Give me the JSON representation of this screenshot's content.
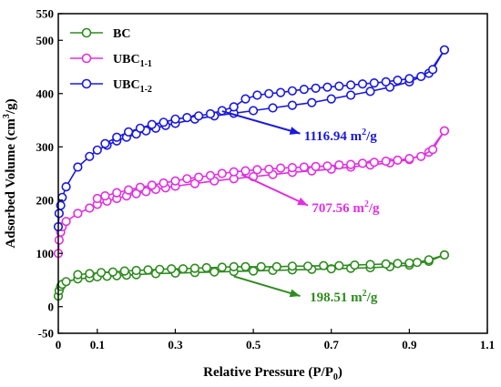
{
  "chart_data": {
    "type": "line",
    "xlabel_main": "Relative Pressure (P/P",
    "xlabel_sub": "0",
    "xlabel_end": ")",
    "ylabel_main": "Adsorbed Volume (cm",
    "ylabel_sup": "3",
    "ylabel_end": "/g)",
    "xlim": [
      0,
      1.1
    ],
    "ylim": [
      -50,
      550
    ],
    "xticks": [
      "0",
      "0.1",
      "0.3",
      "0.5",
      "0.7",
      "0.9",
      "1.1"
    ],
    "xtick_values": [
      0,
      0.1,
      0.3,
      0.5,
      0.7,
      0.9,
      1.1
    ],
    "yticks": [
      "-50",
      "0",
      "100",
      "200",
      "300",
      "400",
      "500",
      "550"
    ],
    "ytick_values": [
      -50,
      0,
      100,
      200,
      300,
      400,
      500,
      550
    ],
    "legend": [
      {
        "main": "BC",
        "sub": "",
        "color": "#2e8b1f"
      },
      {
        "main": "UBC",
        "sub": "1-1",
        "color": "#e030e0"
      },
      {
        "main": "UBC",
        "sub": "1-2",
        "color": "#1a1adc"
      }
    ],
    "series": [
      {
        "color": "#2e8b1f",
        "adsorption": {
          "x": [
            0.0,
            0.002,
            0.006,
            0.01,
            0.02,
            0.05,
            0.08,
            0.1,
            0.125,
            0.15,
            0.175,
            0.2,
            0.25,
            0.3,
            0.35,
            0.4,
            0.45,
            0.5,
            0.55,
            0.6,
            0.65,
            0.7,
            0.75,
            0.8,
            0.85,
            0.9,
            0.95,
            0.99
          ],
          "y": [
            20,
            30,
            38,
            42,
            47,
            52,
            54,
            56,
            57,
            58,
            59,
            60,
            62,
            63,
            64,
            65,
            66,
            67,
            68,
            69,
            70,
            71,
            72,
            73,
            75,
            78,
            85,
            97
          ]
        },
        "desorption": {
          "x": [
            0.99,
            0.95,
            0.92,
            0.9,
            0.87,
            0.84,
            0.8,
            0.76,
            0.72,
            0.68,
            0.64,
            0.6,
            0.56,
            0.52,
            0.48,
            0.45,
            0.42,
            0.38,
            0.35,
            0.32,
            0.29,
            0.26,
            0.23,
            0.2,
            0.17,
            0.14,
            0.11,
            0.08,
            0.05
          ],
          "y": [
            97,
            88,
            83,
            82,
            81,
            80,
            79,
            78,
            77,
            77,
            76,
            76,
            75,
            75,
            75,
            75,
            74,
            73,
            72,
            71,
            71,
            70,
            69,
            68,
            67,
            65,
            64,
            62,
            60
          ]
        }
      },
      {
        "color": "#e030e0",
        "adsorption": {
          "x": [
            0.0,
            0.002,
            0.006,
            0.01,
            0.02,
            0.05,
            0.08,
            0.1,
            0.125,
            0.15,
            0.175,
            0.2,
            0.225,
            0.25,
            0.275,
            0.3,
            0.35,
            0.4,
            0.45,
            0.5,
            0.55,
            0.6,
            0.65,
            0.7,
            0.75,
            0.8,
            0.85,
            0.9,
            0.95,
            0.99
          ],
          "y": [
            100,
            125,
            140,
            150,
            160,
            175,
            185,
            192,
            198,
            203,
            208,
            212,
            216,
            220,
            223,
            226,
            231,
            236,
            240,
            244,
            248,
            252,
            255,
            258,
            262,
            266,
            270,
            276,
            290,
            330
          ]
        },
        "desorption": {
          "x": [
            0.99,
            0.96,
            0.93,
            0.9,
            0.87,
            0.84,
            0.81,
            0.78,
            0.75,
            0.72,
            0.69,
            0.66,
            0.63,
            0.6,
            0.57,
            0.54,
            0.51,
            0.48,
            0.45,
            0.42,
            0.39,
            0.36,
            0.33,
            0.3,
            0.27,
            0.24,
            0.21,
            0.18,
            0.15,
            0.12,
            0.1
          ],
          "y": [
            330,
            295,
            282,
            278,
            275,
            273,
            271,
            269,
            267,
            266,
            264,
            263,
            262,
            261,
            260,
            258,
            257,
            255,
            253,
            250,
            246,
            243,
            240,
            236,
            232,
            228,
            224,
            219,
            214,
            208,
            203
          ]
        }
      },
      {
        "color": "#1a1adc",
        "adsorption": {
          "x": [
            0.0,
            0.002,
            0.006,
            0.01,
            0.02,
            0.05,
            0.08,
            0.1,
            0.125,
            0.15,
            0.175,
            0.2,
            0.225,
            0.25,
            0.275,
            0.3,
            0.35,
            0.4,
            0.45,
            0.5,
            0.55,
            0.6,
            0.65,
            0.7,
            0.75,
            0.8,
            0.85,
            0.9,
            0.95,
            0.99
          ],
          "y": [
            150,
            175,
            190,
            205,
            225,
            262,
            282,
            294,
            303,
            311,
            318,
            324,
            330,
            335,
            340,
            344,
            352,
            358,
            363,
            368,
            373,
            378,
            383,
            390,
            397,
            404,
            412,
            422,
            438,
            482
          ]
        },
        "desorption": {
          "x": [
            0.99,
            0.96,
            0.93,
            0.9,
            0.87,
            0.84,
            0.81,
            0.78,
            0.75,
            0.72,
            0.69,
            0.66,
            0.63,
            0.6,
            0.57,
            0.54,
            0.51,
            0.48,
            0.45,
            0.42,
            0.39,
            0.36,
            0.33,
            0.3,
            0.27,
            0.24,
            0.21,
            0.18,
            0.15,
            0.12
          ],
          "y": [
            482,
            445,
            432,
            428,
            425,
            422,
            420,
            418,
            416,
            414,
            412,
            410,
            408,
            405,
            402,
            400,
            397,
            390,
            375,
            368,
            362,
            358,
            355,
            352,
            346,
            342,
            335,
            328,
            318,
            306
          ]
        }
      }
    ],
    "annotations": [
      {
        "value": "1116.94 m",
        "sup": "2",
        "unit": "/g",
        "color": "#1a1adc",
        "from": [
          0.42,
          367
        ],
        "to": [
          0.62,
          325
        ],
        "text_at": [
          0.63,
          312
        ]
      },
      {
        "value": "707.56 m",
        "sup": "2",
        "unit": "/g",
        "color": "#e030e0",
        "from": [
          0.47,
          248
        ],
        "to": [
          0.64,
          190
        ],
        "text_at": [
          0.65,
          177
        ]
      },
      {
        "value": "198.51 m",
        "sup": "2",
        "unit": "/g",
        "color": "#2e8b1f",
        "from": [
          0.45,
          57
        ],
        "to": [
          0.62,
          20
        ],
        "text_at": [
          0.645,
          10
        ]
      }
    ]
  }
}
